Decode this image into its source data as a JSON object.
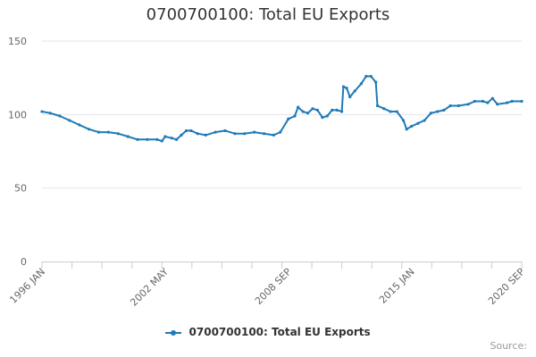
{
  "chart_data": {
    "type": "line",
    "title": "0700700100: Total EU Exports",
    "xlabel": "",
    "ylabel": "",
    "ylim": [
      0,
      150
    ],
    "yticks": [
      0,
      50,
      100,
      150
    ],
    "x_tick_labels": [
      "1996 JAN",
      "2002 MAY",
      "2008 SEP",
      "2015 JAN",
      "2020 SEP"
    ],
    "x_tick_dates": [
      "1996-01",
      "2002-05",
      "2008-09",
      "2015-01",
      "2020-09"
    ],
    "grid": "horizontal",
    "legend_position": "bottom",
    "series": [
      {
        "name": "0700700100: Total EU Exports",
        "color": "#1f7ab8",
        "points": [
          [
            "1996-01",
            102
          ],
          [
            "1996-06",
            101
          ],
          [
            "1996-12",
            99
          ],
          [
            "1997-06",
            96
          ],
          [
            "1997-12",
            93
          ],
          [
            "1998-06",
            90
          ],
          [
            "1998-12",
            88
          ],
          [
            "1999-06",
            88
          ],
          [
            "1999-12",
            87
          ],
          [
            "2000-06",
            85
          ],
          [
            "2000-12",
            83
          ],
          [
            "2001-06",
            83
          ],
          [
            "2001-12",
            83
          ],
          [
            "2002-03",
            82
          ],
          [
            "2002-05",
            85
          ],
          [
            "2002-09",
            84
          ],
          [
            "2002-12",
            83
          ],
          [
            "2003-03",
            86
          ],
          [
            "2003-06",
            89
          ],
          [
            "2003-09",
            89
          ],
          [
            "2004-01",
            87
          ],
          [
            "2004-06",
            86
          ],
          [
            "2004-12",
            88
          ],
          [
            "2005-06",
            89
          ],
          [
            "2005-12",
            87
          ],
          [
            "2006-06",
            87
          ],
          [
            "2006-12",
            88
          ],
          [
            "2007-06",
            87
          ],
          [
            "2007-12",
            86
          ],
          [
            "2008-04",
            88
          ],
          [
            "2008-09",
            97
          ],
          [
            "2009-01",
            99
          ],
          [
            "2009-03",
            105
          ],
          [
            "2009-06",
            102
          ],
          [
            "2009-09",
            101
          ],
          [
            "2009-12",
            104
          ],
          [
            "2010-03",
            103
          ],
          [
            "2010-06",
            98
          ],
          [
            "2010-09",
            99
          ],
          [
            "2010-12",
            103
          ],
          [
            "2011-03",
            103
          ],
          [
            "2011-06",
            102
          ],
          [
            "2011-07",
            119
          ],
          [
            "2011-09",
            118
          ],
          [
            "2011-11",
            112
          ],
          [
            "2012-02",
            116
          ],
          [
            "2012-06",
            121
          ],
          [
            "2012-09",
            126
          ],
          [
            "2012-12",
            126
          ],
          [
            "2013-03",
            122
          ],
          [
            "2013-04",
            106
          ],
          [
            "2013-08",
            104
          ],
          [
            "2013-12",
            102
          ],
          [
            "2014-04",
            102
          ],
          [
            "2014-08",
            96
          ],
          [
            "2014-10",
            90
          ],
          [
            "2015-01",
            92
          ],
          [
            "2015-05",
            94
          ],
          [
            "2015-09",
            96
          ],
          [
            "2016-01",
            101
          ],
          [
            "2016-05",
            102
          ],
          [
            "2016-09",
            103
          ],
          [
            "2017-01",
            106
          ],
          [
            "2017-06",
            106
          ],
          [
            "2017-12",
            107
          ],
          [
            "2018-04",
            109
          ],
          [
            "2018-09",
            109
          ],
          [
            "2018-12",
            108
          ],
          [
            "2019-03",
            111
          ],
          [
            "2019-06",
            107
          ],
          [
            "2019-12",
            108
          ],
          [
            "2020-03",
            109
          ],
          [
            "2020-09",
            109
          ]
        ]
      }
    ]
  },
  "legend": {
    "label": "0700700100: Total EU Exports"
  },
  "source": {
    "label": "Source:"
  }
}
